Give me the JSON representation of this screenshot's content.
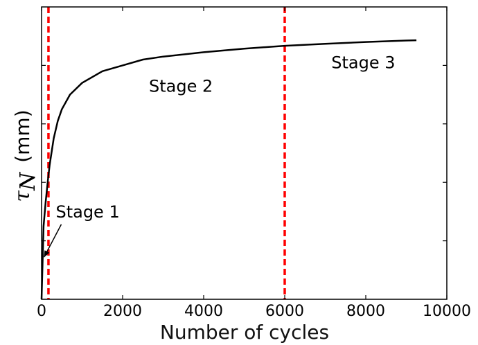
{
  "chart_data": {
    "type": "line",
    "title": "",
    "xlabel": "Number of cycles",
    "ylabel_symbol": "τ",
    "ylabel_subscript": "N",
    "ylabel_unit": "(mm)",
    "xlim": [
      0,
      10000
    ],
    "ylim": [
      0,
      1
    ],
    "x_ticks": [
      0,
      2000,
      4000,
      6000,
      8000,
      10000
    ],
    "x_tick_labels": [
      "0",
      "2000",
      "4000",
      "6000",
      "8000",
      "10000"
    ],
    "y_ticks": [
      0.2,
      0.4,
      0.6,
      0.8
    ],
    "y_tick_labels": [],
    "grid": false,
    "series": [
      {
        "color": "#000000",
        "x": [
          0,
          50,
          100,
          150,
          200,
          300,
          400,
          500,
          700,
          1000,
          1500,
          2000,
          2500,
          3000,
          4000,
          5000,
          6000,
          7000,
          8000,
          9000,
          9250
        ],
        "y": [
          0.0,
          0.25,
          0.33,
          0.4,
          0.46,
          0.55,
          0.61,
          0.65,
          0.7,
          0.74,
          0.78,
          0.8,
          0.82,
          0.83,
          0.845,
          0.857,
          0.867,
          0.874,
          0.88,
          0.885,
          0.886
        ]
      }
    ],
    "vlines": [
      {
        "x": 170,
        "color": "#ff0000",
        "style": "dashed"
      },
      {
        "x": 6000,
        "color": "#ff0000",
        "style": "dashed"
      }
    ],
    "annotations": [
      {
        "text": "Stage 1",
        "x": 350,
        "y": 0.28,
        "arrow_to": [
          30,
          0.14
        ]
      },
      {
        "text": "Stage 2",
        "x": 2650,
        "y": 0.71
      },
      {
        "text": "Stage 3",
        "x": 7150,
        "y": 0.79
      }
    ]
  }
}
